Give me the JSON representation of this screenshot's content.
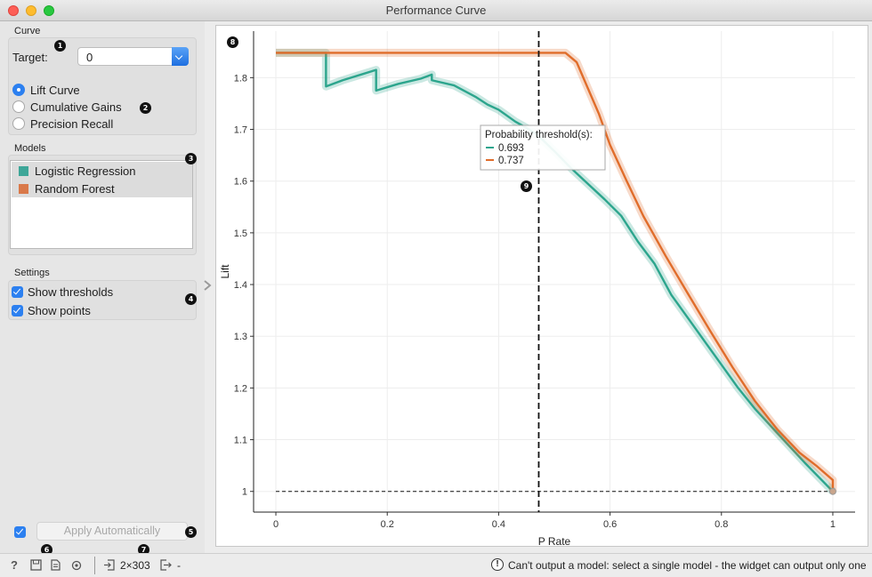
{
  "window": {
    "title": "Performance Curve"
  },
  "curve": {
    "section_label": "Curve",
    "target_label": "Target:",
    "target_value": "0",
    "options": [
      {
        "label": "Lift Curve",
        "selected": true
      },
      {
        "label": "Cumulative Gains",
        "selected": false
      },
      {
        "label": "Precision Recall",
        "selected": false
      }
    ]
  },
  "models": {
    "section_label": "Models",
    "items": [
      {
        "label": "Logistic Regression",
        "color": "#3ea698"
      },
      {
        "label": "Random Forest",
        "color": "#d9794a"
      }
    ]
  },
  "settings": {
    "section_label": "Settings",
    "show_thresholds": "Show thresholds",
    "show_points": "Show points"
  },
  "apply": {
    "label": "Apply Automatically",
    "checked": true
  },
  "badges": [
    "1",
    "2",
    "3",
    "4",
    "5",
    "6",
    "7",
    "8",
    "9"
  ],
  "status": {
    "input_count": "2×303",
    "output_value": "-",
    "warning": "Can't output a model: select a single model - the widget can output only one"
  },
  "chart_data": {
    "type": "line",
    "xlabel": "P Rate",
    "ylabel": "Lift",
    "xlim": [
      -0.04,
      1.04
    ],
    "ylim": [
      0.96,
      1.89
    ],
    "x_ticks": [
      "0",
      "0.2",
      "0.4",
      "0.6",
      "0.8",
      "1"
    ],
    "y_ticks": [
      "1",
      "1.1",
      "1.2",
      "1.3",
      "1.4",
      "1.5",
      "1.6",
      "1.7",
      "1.8"
    ],
    "grid": true,
    "threshold_x": 0.472,
    "baseline_y": 1.0,
    "tooltip": {
      "title": "Probability threshold(s):",
      "values": [
        {
          "value": "0.693",
          "color": "#2ca58d"
        },
        {
          "value": "0.737",
          "color": "#e06d2b"
        }
      ]
    },
    "series": [
      {
        "color": "#2ca58d",
        "x": [
          0.0,
          0.05,
          0.09,
          0.09,
          0.12,
          0.15,
          0.18,
          0.18,
          0.22,
          0.26,
          0.28,
          0.28,
          0.32,
          0.36,
          0.38,
          0.4,
          0.43,
          0.45,
          0.47,
          0.5,
          0.53,
          0.56,
          0.59,
          0.62,
          0.65,
          0.68,
          0.71,
          0.74,
          0.77,
          0.8,
          0.83,
          0.86,
          0.89,
          0.92,
          0.95,
          0.98,
          1.0
        ],
        "y": [
          1.848,
          1.848,
          1.848,
          1.783,
          1.795,
          1.805,
          1.815,
          1.775,
          1.788,
          1.798,
          1.806,
          1.795,
          1.785,
          1.762,
          1.748,
          1.738,
          1.715,
          1.703,
          1.689,
          1.658,
          1.625,
          1.595,
          1.565,
          1.533,
          1.483,
          1.44,
          1.38,
          1.335,
          1.29,
          1.245,
          1.2,
          1.16,
          1.125,
          1.09,
          1.055,
          1.022,
          1.0
        ]
      },
      {
        "color": "#e06d2b",
        "x": [
          0.0,
          0.1,
          0.2,
          0.3,
          0.4,
          0.5,
          0.52,
          0.54,
          0.56,
          0.58,
          0.6,
          0.63,
          0.66,
          0.7,
          0.74,
          0.78,
          0.82,
          0.86,
          0.9,
          0.94,
          0.97,
          1.0,
          1.0
        ],
        "y": [
          1.848,
          1.848,
          1.848,
          1.848,
          1.848,
          1.848,
          1.848,
          1.83,
          1.78,
          1.73,
          1.67,
          1.6,
          1.532,
          1.455,
          1.382,
          1.31,
          1.24,
          1.175,
          1.12,
          1.075,
          1.05,
          1.022,
          1.0
        ]
      }
    ]
  }
}
